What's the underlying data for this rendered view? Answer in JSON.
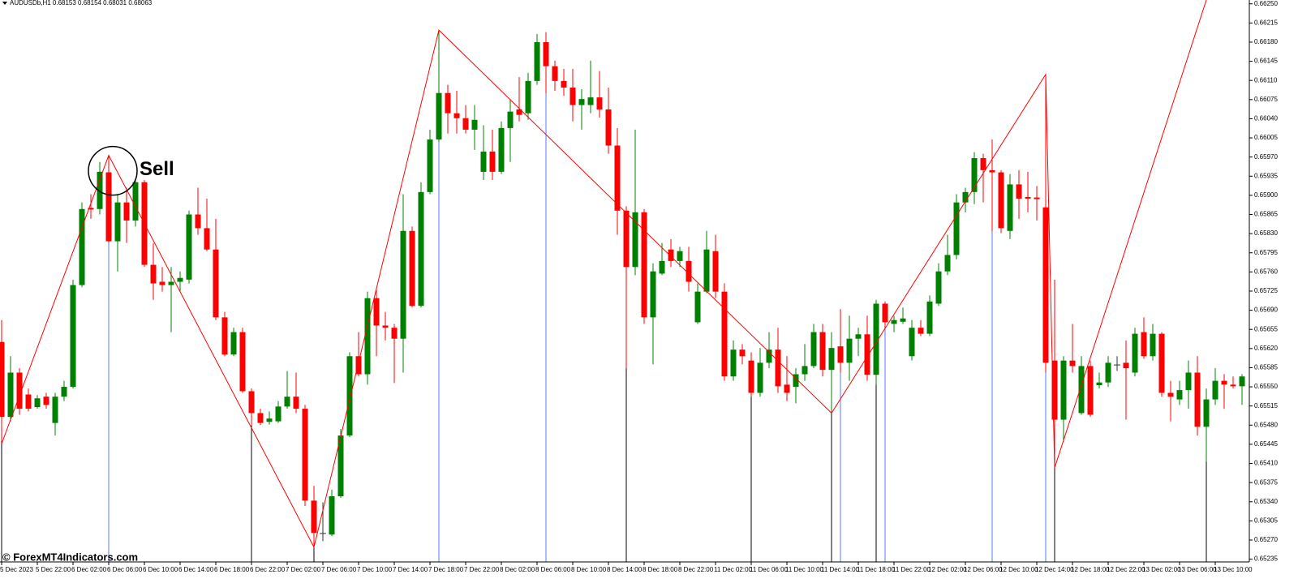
{
  "chart_data": {
    "type": "candlestick",
    "title": "AUDUSDb,H1  0.68153 0.68154 0.68031 0.68063",
    "watermark": "© ForexMT4Indicators.com",
    "annotation": {
      "text": "Sell",
      "at": 12
    },
    "up_color": "#008000",
    "down_color": "#ff0000",
    "categories": [
      "5 Dec 2023",
      null,
      null,
      null,
      "5 Dec 22:00",
      null,
      null,
      null,
      "6 Dec 02:00",
      null,
      null,
      null,
      "6 Dec 06:00",
      null,
      null,
      null,
      "6 Dec 10:00",
      null,
      null,
      null,
      "6 Dec 14:00",
      null,
      null,
      null,
      "6 Dec 18:00",
      null,
      null,
      null,
      "6 Dec 22:00",
      null,
      null,
      null,
      "7 Dec 02:00",
      null,
      null,
      null,
      "7 Dec 06:00",
      null,
      null,
      null,
      "7 Dec 10:00",
      null,
      null,
      null,
      "7 Dec 14:00",
      null,
      null,
      null,
      "7 Dec 18:00",
      null,
      null,
      null,
      "7 Dec 22:00",
      null,
      null,
      null,
      "8 Dec 02:00",
      null,
      null,
      null,
      "8 Dec 06:00",
      null,
      null,
      null,
      "8 Dec 10:00",
      null,
      null,
      null,
      "8 Dec 14:00",
      null,
      null,
      null,
      "8 Dec 18:00",
      null,
      null,
      null,
      "8 Dec 22:00",
      null,
      null,
      null,
      "11 Dec 02:00",
      null,
      null,
      null,
      "11 Dec 06:00",
      null,
      null,
      null,
      "11 Dec 10:00",
      null,
      null,
      null,
      "11 Dec 14:00",
      null,
      null,
      null,
      "11 Dec 18:00",
      null,
      null,
      null,
      "11 Dec 22:00",
      null,
      null,
      null,
      "12 Dec 02:00",
      null,
      null,
      null,
      "12 Dec 06:00",
      null,
      null,
      null,
      "12 Dec 10:00",
      null,
      null,
      null,
      "12 Dec 14:00",
      null,
      null,
      null,
      "12 Dec 18:00",
      null,
      null,
      null,
      "12 Dec 22:00",
      null,
      null,
      null,
      "13 Dec 02:00",
      null,
      null,
      null,
      "13 Dec 06:00",
      null,
      null,
      null,
      "13 Dec 10:00",
      null,
      null,
      null
    ],
    "open": [
      0.65632,
      0.65495,
      0.65576,
      0.65536,
      0.65513,
      0.65532,
      0.65484,
      0.65532,
      0.6555,
      0.65736,
      0.65877,
      0.65875,
      0.65942,
      0.65816,
      0.65887,
      0.65854,
      0.65924,
      0.65773,
      0.65742,
      0.65736,
      0.65742,
      0.65746,
      0.65865,
      0.6584,
      0.65801,
      0.65677,
      0.65609,
      0.6565,
      0.65542,
      0.65502,
      0.65486,
      0.65487,
      0.65514,
      0.65532,
      0.6551,
      0.65342,
      0.65282,
      0.6528,
      0.6535,
      0.65461,
      0.65606,
      0.65573,
      0.65712,
      0.65662,
      0.65658,
      0.65638,
      0.65835,
      0.65698,
      0.65906,
      0.66002,
      0.66087,
      0.6605,
      0.66041,
      0.6602,
      0.65943,
      0.6598,
      0.65943,
      0.66023,
      0.66057,
      0.6605,
      0.66109,
      0.6618,
      0.66136,
      0.66109,
      0.66097,
      0.66065,
      0.66065,
      0.66079,
      0.66057,
      0.65991,
      0.65872,
      0.65769,
      0.65869,
      0.65677,
      0.65757,
      0.65801,
      0.6578,
      0.6578,
      0.65668,
      0.65724,
      0.65798,
      0.65724,
      0.65569,
      0.65618,
      0.65598,
      0.65539,
      0.65594,
      0.65618,
      0.65554,
      0.6555,
      0.65573,
      0.65588,
      0.6565,
      0.65581,
      0.65624,
      0.65594,
      0.65638,
      0.65646,
      0.65572,
      0.65702,
      0.65665,
      0.65669,
      0.65606,
      0.65658,
      0.65647,
      0.65702,
      0.65761,
      0.65791,
      0.65887,
      0.65906,
      0.65968,
      0.65946,
      0.65942,
      0.65835,
      0.6592,
      0.65897,
      0.65896,
      0.65878,
      0.65598,
      0.6549,
      0.65598,
      0.65502,
      0.65588,
      0.65553,
      0.65558,
      0.6559,
      0.65594,
      0.65576,
      0.6565,
      0.65606,
      0.65647,
      0.65539,
      0.65527,
      0.65544,
      0.65576,
      0.65477,
      0.65527,
      0.65561,
      0.65554,
      0.65551
    ],
    "high": [
      0.65672,
      0.65606,
      0.65584,
      0.65547,
      0.65535,
      0.65539,
      0.65539,
      0.65561,
      0.65746,
      0.65887,
      0.65902,
      0.65961,
      0.65973,
      0.65902,
      0.65914,
      0.65931,
      0.65928,
      0.65813,
      0.65769,
      0.65769,
      0.65761,
      0.65872,
      0.65914,
      0.65894,
      0.65857,
      0.65687,
      0.65658,
      0.65658,
      0.65547,
      0.6551,
      0.65505,
      0.65524,
      0.65579,
      0.65576,
      0.65517,
      0.65369,
      0.65339,
      0.65362,
      0.65473,
      0.65613,
      0.6565,
      0.65724,
      0.65727,
      0.65687,
      0.65665,
      0.65902,
      0.65843,
      0.65924,
      0.6602,
      0.66202,
      0.66102,
      0.66091,
      0.66065,
      0.66065,
      0.66028,
      0.6602,
      0.66035,
      0.66076,
      0.66116,
      0.66124,
      0.66195,
      0.66198,
      0.66146,
      0.66131,
      0.66131,
      0.66094,
      0.66146,
      0.66127,
      0.66097,
      0.66023,
      0.6588,
      0.6602,
      0.65875,
      0.65776,
      0.65813,
      0.6582,
      0.65806,
      0.65806,
      0.65739,
      0.65835,
      0.65828,
      0.65739,
      0.65635,
      0.65628,
      0.65613,
      0.65621,
      0.6565,
      0.65658,
      0.65606,
      0.65584,
      0.65628,
      0.65665,
      0.65665,
      0.6565,
      0.65692,
      0.6568,
      0.65658,
      0.6568,
      0.65709,
      0.65706,
      0.6568,
      0.65695,
      0.65672,
      0.65672,
      0.65717,
      0.65776,
      0.65828,
      0.65902,
      0.65914,
      0.65979,
      0.65976,
      0.66002,
      0.65946,
      0.65939,
      0.65946,
      0.65943,
      0.65917,
      0.66121,
      0.65746,
      0.65606,
      0.65665,
      0.65606,
      0.65598,
      0.65576,
      0.65606,
      0.65606,
      0.65635,
      0.65658,
      0.65677,
      0.65665,
      0.6565,
      0.65561,
      0.65561,
      0.65598,
      0.65606,
      0.65547,
      0.65584,
      0.65573,
      0.65569,
      0.65573
    ],
    "low": [
      0.6545,
      0.65487,
      0.65499,
      0.65505,
      0.6551,
      0.6551,
      0.65461,
      0.65524,
      0.65547,
      0.65732,
      0.65857,
      0.65865,
      0.65813,
      0.65761,
      0.65813,
      0.65843,
      0.65769,
      0.65709,
      0.65724,
      0.6565,
      0.65724,
      0.65739,
      0.65828,
      0.65798,
      0.65672,
      0.65606,
      0.65606,
      0.65539,
      0.6548,
      0.6548,
      0.65481,
      0.65484,
      0.6551,
      0.65502,
      0.65332,
      0.65257,
      0.65268,
      0.65277,
      0.65347,
      0.65458,
      0.65569,
      0.65554,
      0.65606,
      0.65635,
      0.65557,
      0.65576,
      0.65695,
      0.65695,
      0.65902,
      0.65998,
      0.66013,
      0.66013,
      0.66013,
      0.65983,
      0.65928,
      0.65928,
      0.65939,
      0.65961,
      0.66035,
      0.66038,
      0.66102,
      0.66087,
      0.66091,
      0.66082,
      0.66035,
      0.6602,
      0.6605,
      0.66042,
      0.65976,
      0.65828,
      0.65584,
      0.65754,
      0.65665,
      0.65591,
      0.65754,
      0.65769,
      0.65769,
      0.65724,
      0.65665,
      0.65721,
      0.65712,
      0.65561,
      0.65561,
      0.65591,
      0.65532,
      0.65532,
      0.65584,
      0.65539,
      0.65524,
      0.6552,
      0.65561,
      0.65584,
      0.65569,
      0.65502,
      0.65576,
      0.65561,
      0.65606,
      0.65561,
      0.65554,
      0.65658,
      0.6565,
      0.65665,
      0.65598,
      0.65643,
      0.65643,
      0.65698,
      0.65754,
      0.65783,
      0.65869,
      0.65884,
      0.65887,
      0.65835,
      0.65831,
      0.6582,
      0.65857,
      0.65869,
      0.65854,
      0.65576,
      0.65421,
      0.6545,
      0.65576,
      0.65499,
      0.65495,
      0.65547,
      0.6555,
      0.65579,
      0.6549,
      0.65569,
      0.65601,
      0.65598,
      0.65532,
      0.65487,
      0.65517,
      0.6551,
      0.65461,
      0.65413,
      0.65517,
      0.6551,
      0.65547,
      0.65517
    ],
    "close": [
      0.65495,
      0.65576,
      0.6551,
      0.6551,
      0.65529,
      0.65517,
      0.65532,
      0.6555,
      0.65736,
      0.65875,
      0.65874,
      0.65943,
      0.65816,
      0.65887,
      0.65854,
      0.65924,
      0.65773,
      0.65739,
      0.65736,
      0.65742,
      0.65749,
      0.65865,
      0.6584,
      0.65801,
      0.65677,
      0.65609,
      0.6565,
      0.65542,
      0.65502,
      0.65484,
      0.65492,
      0.65514,
      0.65532,
      0.6551,
      0.65342,
      0.65283,
      0.65282,
      0.6535,
      0.65461,
      0.65606,
      0.65573,
      0.65712,
      0.65662,
      0.65658,
      0.65638,
      0.65835,
      0.65698,
      0.65906,
      0.66002,
      0.66087,
      0.6605,
      0.66041,
      0.6602,
      0.66038,
      0.6598,
      0.65943,
      0.66023,
      0.66053,
      0.66047,
      0.66109,
      0.6618,
      0.66136,
      0.66109,
      0.66097,
      0.66065,
      0.66076,
      0.66079,
      0.66057,
      0.65991,
      0.65872,
      0.65769,
      0.65869,
      0.65677,
      0.65761,
      0.6578,
      0.6578,
      0.65798,
      0.65742,
      0.65724,
      0.65801,
      0.65724,
      0.65569,
      0.65618,
      0.65606,
      0.65539,
      0.65594,
      0.65618,
      0.65551,
      0.65539,
      0.65573,
      0.65588,
      0.6565,
      0.65581,
      0.65621,
      0.65594,
      0.65638,
      0.65646,
      0.65572,
      0.65702,
      0.65668,
      0.65672,
      0.65675,
      0.65658,
      0.65647,
      0.65706,
      0.65761,
      0.65791,
      0.65887,
      0.65906,
      0.65968,
      0.65946,
      0.65942,
      0.6584,
      0.6592,
      0.65894,
      0.65894,
      0.65893,
      0.65594,
      0.6549,
      0.65598,
      0.65588,
      0.65588,
      0.65499,
      0.65558,
      0.65594,
      0.6559,
      0.65584,
      0.65647,
      0.65606,
      0.65647,
      0.65539,
      0.65532,
      0.65544,
      0.65576,
      0.65477,
      0.65527,
      0.65561,
      0.65554,
      0.65551,
      0.65569
    ],
    "zigzag": {
      "color": "#ff0000",
      "x": [
        0,
        12,
        35,
        49,
        93,
        117,
        118,
        135
      ],
      "values": [
        0.65446,
        0.65973,
        0.65257,
        0.66202,
        0.65502,
        0.66121,
        0.65402,
        0.66257
      ]
    },
    "high_markers": [
      12,
      49,
      61,
      94,
      99,
      111,
      117
    ],
    "high_marker_color": "#5a78ff",
    "low_markers": [
      0,
      28,
      35,
      70,
      84,
      93,
      98,
      118,
      135
    ],
    "low_marker_color": "#000000",
    "ylim": [
      0.6523,
      0.66257
    ],
    "yticks": [
      0.65235,
      {
        "value": 0.6527,
        "label": "0.65270"
      },
      0.65305,
      {
        "value": 0.6534,
        "label": "0.65340"
      },
      0.65375,
      {
        "value": 0.6541,
        "label": "0.65410"
      },
      0.65445,
      {
        "value": 0.6548,
        "label": "0.65480"
      },
      0.65515,
      {
        "value": 0.6555,
        "label": "0.65550"
      },
      0.65585,
      {
        "value": 0.6562,
        "label": "0.65620"
      },
      0.65655,
      {
        "value": 0.6569,
        "label": "0.65690"
      },
      0.65725,
      {
        "value": 0.6576,
        "label": "0.65760"
      },
      0.65795,
      {
        "value": 0.6583,
        "label": "0.65830"
      },
      0.65865,
      {
        "value": 0.659,
        "label": "0.65900"
      },
      0.65935,
      {
        "value": 0.6597,
        "label": "0.65970"
      },
      0.66005,
      {
        "value": 0.6604,
        "label": "0.66040"
      },
      0.66075,
      {
        "value": 0.6611,
        "label": "0.66110"
      },
      0.66145,
      {
        "value": 0.6618,
        "label": "0.66180"
      },
      0.66215,
      {
        "value": 0.6625,
        "label": "0.66250"
      }
    ],
    "grid": false
  }
}
